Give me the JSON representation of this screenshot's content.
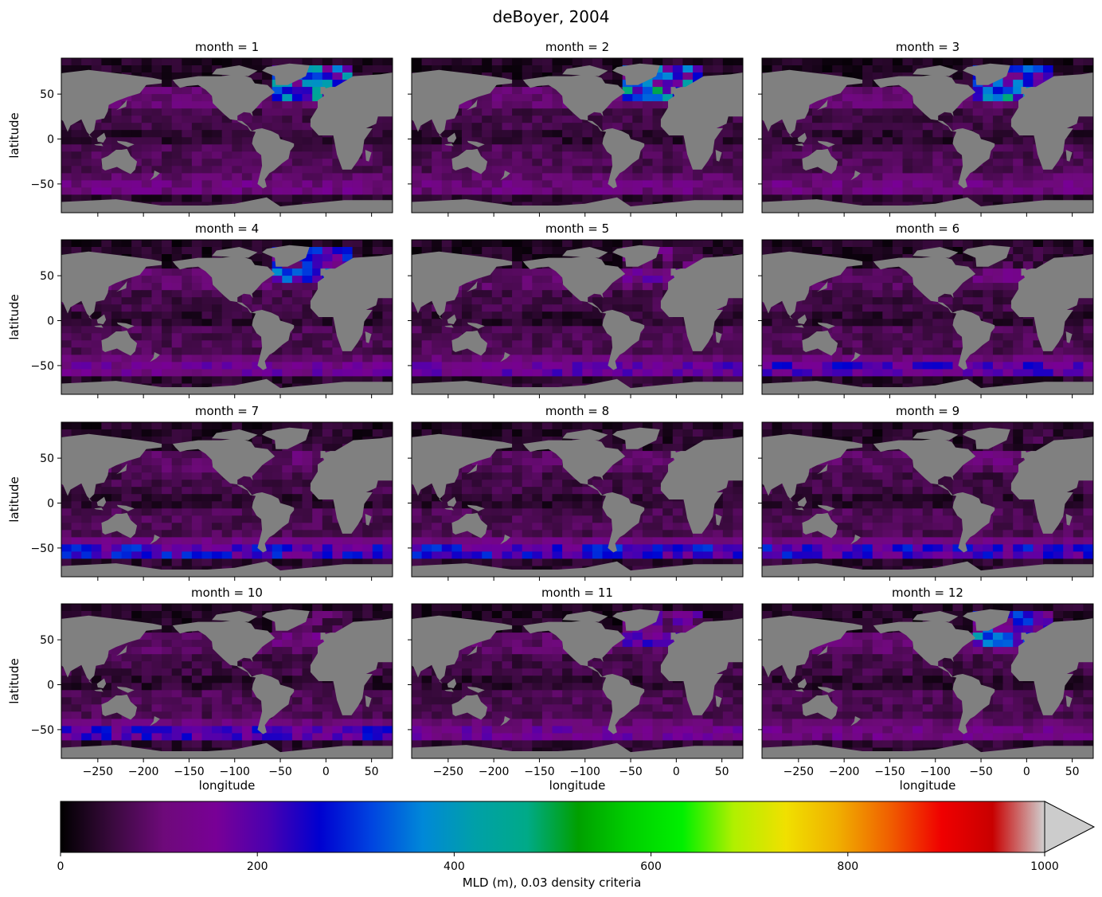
{
  "title": "deBoyer, 2004",
  "chart_data": {
    "type": "heatmap",
    "title": "deBoyer, 2004",
    "xlabel": "longitude",
    "ylabel": "latitude",
    "xlim": [
      -290,
      73
    ],
    "ylim": [
      -82,
      90
    ],
    "xticks": [
      -250,
      -200,
      -150,
      -100,
      -50,
      0,
      50
    ],
    "xtick_labels": [
      "−250",
      "−200",
      "−150",
      "−100",
      "−50",
      "0",
      "50"
    ],
    "yticks": [
      50,
      0,
      -50
    ],
    "ytick_labels": [
      "50",
      "0",
      "−50"
    ],
    "land_color": "#808080",
    "panels": [
      {
        "title": "month = 1",
        "month": 1,
        "nh": 1.0,
        "sh": 0.28
      },
      {
        "title": "month = 2",
        "month": 2,
        "nh": 1.0,
        "sh": 0.22
      },
      {
        "title": "month = 3",
        "month": 3,
        "nh": 0.95,
        "sh": 0.25
      },
      {
        "title": "month = 4",
        "month": 4,
        "nh": 0.7,
        "sh": 0.45
      },
      {
        "title": "month = 5",
        "month": 5,
        "nh": 0.25,
        "sh": 0.6
      },
      {
        "title": "month = 6",
        "month": 6,
        "nh": 0.1,
        "sh": 0.8
      },
      {
        "title": "month = 7",
        "month": 7,
        "nh": 0.05,
        "sh": 1.0
      },
      {
        "title": "month = 8",
        "month": 8,
        "nh": 0.05,
        "sh": 1.0
      },
      {
        "title": "month = 9",
        "month": 9,
        "nh": 0.08,
        "sh": 0.95
      },
      {
        "title": "month = 10",
        "month": 10,
        "nh": 0.15,
        "sh": 0.85
      },
      {
        "title": "month = 11",
        "month": 11,
        "nh": 0.4,
        "sh": 0.45
      },
      {
        "title": "month = 12",
        "month": 12,
        "nh": 0.8,
        "sh": 0.3
      }
    ],
    "colorbar": {
      "label": "MLD (m), 0.03 density criteria",
      "range": [
        0,
        1000
      ],
      "extend": "max",
      "ticks": [
        0,
        200,
        400,
        600,
        800,
        1000
      ],
      "tick_labels": [
        "0",
        "200",
        "400",
        "600",
        "800",
        "1000"
      ],
      "colors": [
        "#000000",
        "#3a0a3e",
        "#6e0a7a",
        "#780096",
        "#4a00b0",
        "#0000d0",
        "#0044e0",
        "#0088d8",
        "#00a0a8",
        "#00aa88",
        "#00a000",
        "#00d000",
        "#00f000",
        "#b0f000",
        "#f0e000",
        "#f0b000",
        "#f06000",
        "#f00000",
        "#c80000",
        "#d0d0d0"
      ],
      "over_color": "#cccccc"
    }
  }
}
